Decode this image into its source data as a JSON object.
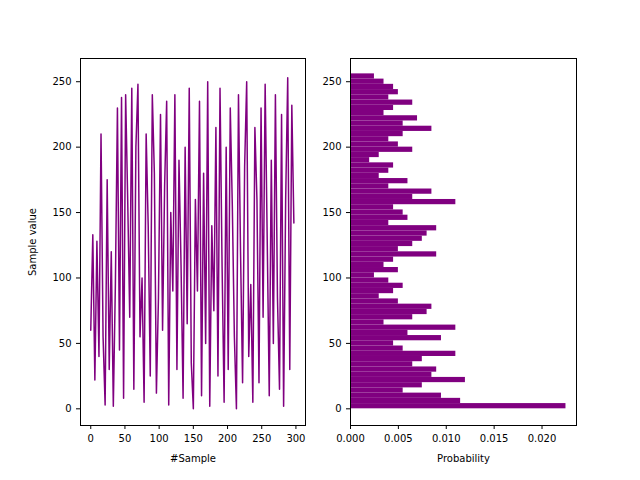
{
  "chart_data": [
    {
      "type": "line",
      "x_label": "#Sample",
      "y_label": "Sample value",
      "color": "#800080",
      "x": [
        0,
        3,
        6,
        9,
        12,
        15,
        18,
        21,
        24,
        27,
        30,
        33,
        36,
        39,
        42,
        45,
        48,
        51,
        54,
        57,
        60,
        63,
        66,
        69,
        72,
        75,
        78,
        81,
        84,
        87,
        90,
        93,
        96,
        99,
        102,
        105,
        108,
        111,
        114,
        117,
        120,
        123,
        126,
        129,
        132,
        135,
        138,
        141,
        144,
        147,
        150,
        153,
        156,
        159,
        162,
        165,
        168,
        171,
        174,
        177,
        180,
        183,
        186,
        189,
        192,
        195,
        198,
        201,
        204,
        207,
        210,
        213,
        216,
        219,
        222,
        225,
        228,
        231,
        234,
        237,
        240,
        243,
        246,
        249,
        252,
        255,
        258,
        261,
        264,
        267,
        270,
        273,
        276,
        279,
        282,
        285,
        288,
        291,
        294,
        297
      ],
      "values": [
        60,
        133,
        22,
        128,
        40,
        210,
        55,
        3,
        175,
        30,
        120,
        2,
        95,
        230,
        45,
        238,
        8,
        240,
        160,
        70,
        245,
        15,
        200,
        248,
        55,
        100,
        5,
        210,
        140,
        25,
        240,
        180,
        12,
        85,
        225,
        60,
        170,
        235,
        3,
        150,
        90,
        240,
        30,
        190,
        110,
        8,
        200,
        65,
        245,
        35,
        0,
        160,
        90,
        235,
        10,
        180,
        50,
        250,
        2,
        140,
        75,
        215,
        25,
        245,
        110,
        5,
        200,
        30,
        230,
        155,
        55,
        0,
        240,
        120,
        20,
        185,
        250,
        40,
        95,
        5,
        215,
        160,
        20,
        230,
        70,
        248,
        130,
        10,
        190,
        50,
        240,
        85,
        15,
        225,
        2,
        160,
        253,
        30,
        232,
        142
      ],
      "xlim": [
        -15,
        314
      ],
      "xticks": [
        0,
        50,
        100,
        150,
        200,
        250,
        300
      ],
      "ylim": [
        -12.75,
        267.75
      ],
      "yticks": [
        0,
        50,
        100,
        150,
        200,
        250
      ]
    },
    {
      "type": "histogram",
      "orientation": "horizontal",
      "x_label": "Probability",
      "color": "#800080",
      "bins": [
        0,
        4,
        8,
        12,
        16,
        20,
        24,
        28,
        32,
        36,
        40,
        44,
        48,
        52,
        56,
        60,
        64,
        68,
        72,
        76,
        80,
        84,
        88,
        92,
        96,
        100,
        104,
        108,
        112,
        116,
        120,
        124,
        128,
        132,
        136,
        140,
        144,
        148,
        152,
        156,
        160,
        164,
        168,
        172,
        176,
        180,
        184,
        188,
        192,
        196,
        200,
        204,
        208,
        212,
        216,
        220,
        224,
        228,
        232,
        236,
        240,
        244,
        248,
        252,
        256
      ],
      "values": [
        0.0225,
        0.0115,
        0.0095,
        0.0055,
        0.0075,
        0.012,
        0.0085,
        0.009,
        0.0065,
        0.0075,
        0.011,
        0.0055,
        0.0045,
        0.0095,
        0.006,
        0.011,
        0.0035,
        0.0065,
        0.008,
        0.0085,
        0.005,
        0.003,
        0.0045,
        0.0055,
        0.004,
        0.0025,
        0.005,
        0.0035,
        0.0045,
        0.009,
        0.005,
        0.0065,
        0.0075,
        0.008,
        0.009,
        0.004,
        0.006,
        0.0055,
        0.0045,
        0.011,
        0.0065,
        0.0085,
        0.004,
        0.006,
        0.003,
        0.004,
        0.0045,
        0.002,
        0.003,
        0.0065,
        0.005,
        0.004,
        0.0055,
        0.0085,
        0.0055,
        0.007,
        0.0035,
        0.0045,
        0.0065,
        0.004,
        0.005,
        0.0045,
        0.0035,
        0.0025
      ],
      "xlim": [
        0,
        0.0236
      ],
      "xticks": [
        {
          "value": 0,
          "label": "0.000"
        },
        {
          "value": 0.005,
          "label": "0.005"
        },
        {
          "value": 0.01,
          "label": "0.010"
        },
        {
          "value": 0.015,
          "label": "0.015"
        },
        {
          "value": 0.02,
          "label": "0.020"
        }
      ],
      "ylim": [
        -12.75,
        267.75
      ],
      "yticks": [
        0,
        50,
        100,
        150,
        200,
        250
      ]
    }
  ]
}
